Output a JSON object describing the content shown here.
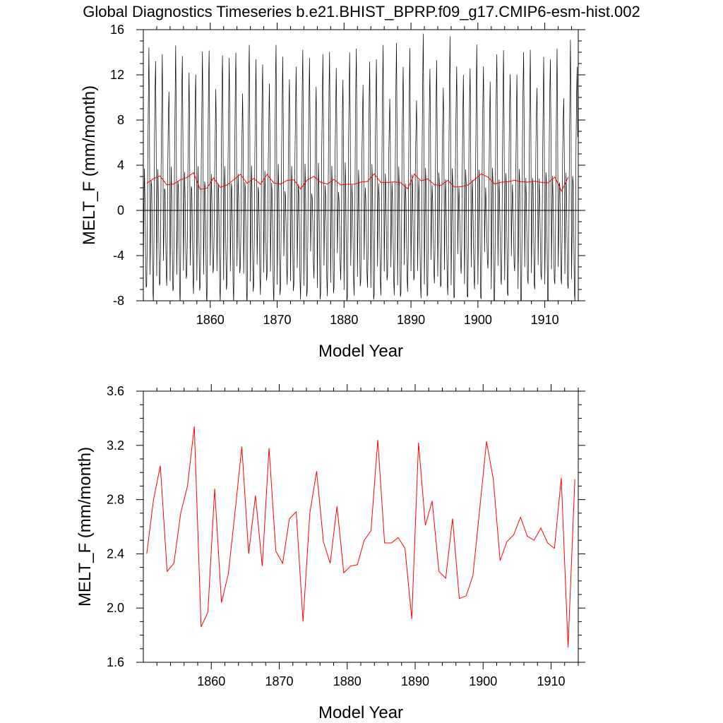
{
  "title": "Global Diagnostics Timeseries b.e21.BHIST_BPRP.f09_g17.CMIP6-esm-hist.002",
  "colors": {
    "monthly_series": "#000000",
    "annual_series": "#ff0000",
    "zero_line": "#000000",
    "frame": "#000000"
  },
  "chart_data": [
    {
      "type": "line",
      "xlabel": "Model Year",
      "ylabel": "MELT_F (mm/month)",
      "xlim": [
        1850,
        1915
      ],
      "ylim": [
        -8,
        16
      ],
      "xticks": [
        1860,
        1870,
        1880,
        1890,
        1900,
        1910
      ],
      "xtick_labels": [
        "1860",
        "1870",
        "1880",
        "1890",
        "1900",
        "1910"
      ],
      "yticks": [
        -8,
        -4,
        0,
        4,
        8,
        12,
        16
      ],
      "ytick_labels": [
        "-8",
        "-4",
        "0",
        "4",
        "8",
        "12",
        "16"
      ],
      "grid": false,
      "zero_line": true,
      "monthly_pattern": {
        "description_of_shape": "seasonal cycle repeated each year",
        "month_fractions": [
          0.0,
          0.083,
          0.167,
          0.25,
          0.333,
          0.417,
          0.5,
          0.583,
          0.667,
          0.75,
          0.833,
          0.917
        ],
        "month_values": [
          -5.5,
          -1.0,
          3.0,
          1.5,
          -2.5,
          -6.5,
          -7.0,
          -3.0,
          5.0,
          9.5,
          13.0,
          7.0
        ]
      },
      "series": [
        {
          "color": "#000000",
          "style": "monthly"
        },
        {
          "color": "#ff0000",
          "style": "annual_mean"
        }
      ]
    },
    {
      "type": "line",
      "xlabel": "Model Year",
      "ylabel": "MELT_F (mm/month)",
      "xlim": [
        1850,
        1914
      ],
      "ylim": [
        1.6,
        3.6
      ],
      "xticks": [
        1860,
        1870,
        1880,
        1890,
        1900,
        1910
      ],
      "xtick_labels": [
        "1860",
        "1870",
        "1880",
        "1890",
        "1900",
        "1910"
      ],
      "yticks": [
        1.6,
        2.0,
        2.4,
        2.8,
        3.2,
        3.6
      ],
      "ytick_labels": [
        "1.6",
        "2.0",
        "2.4",
        "2.8",
        "3.2",
        "3.6"
      ],
      "grid": false,
      "series": [
        {
          "color": "#ff0000",
          "x": [
            1850.5,
            1851.5,
            1852.5,
            1853.5,
            1854.5,
            1855.5,
            1856.5,
            1857.5,
            1858.5,
            1859.5,
            1860.5,
            1861.5,
            1862.5,
            1863.5,
            1864.5,
            1865.5,
            1866.5,
            1867.5,
            1868.5,
            1869.5,
            1870.5,
            1871.5,
            1872.5,
            1873.5,
            1874.5,
            1875.5,
            1876.5,
            1877.5,
            1878.5,
            1879.5,
            1880.5,
            1881.5,
            1882.5,
            1883.5,
            1884.5,
            1885.5,
            1886.5,
            1887.5,
            1888.5,
            1889.5,
            1890.5,
            1891.5,
            1892.5,
            1893.5,
            1894.5,
            1895.5,
            1896.5,
            1897.5,
            1898.5,
            1899.5,
            1900.5,
            1901.5,
            1902.5,
            1903.5,
            1904.5,
            1905.5,
            1906.5,
            1907.5,
            1908.5,
            1909.5,
            1910.5,
            1911.5,
            1912.5,
            1913.5
          ],
          "values": [
            2.4,
            2.8,
            3.05,
            2.27,
            2.33,
            2.7,
            2.9,
            3.34,
            1.86,
            1.97,
            2.88,
            2.04,
            2.25,
            2.71,
            3.19,
            2.4,
            2.83,
            2.31,
            3.18,
            2.42,
            2.33,
            2.66,
            2.71,
            1.9,
            2.7,
            3.01,
            2.49,
            2.33,
            2.75,
            2.26,
            2.31,
            2.32,
            2.5,
            2.57,
            3.24,
            2.48,
            2.48,
            2.52,
            2.44,
            1.92,
            3.22,
            2.61,
            2.79,
            2.27,
            2.22,
            2.66,
            2.07,
            2.09,
            2.24,
            2.73,
            3.23,
            2.95,
            2.35,
            2.49,
            2.54,
            2.67,
            2.53,
            2.5,
            2.59,
            2.48,
            2.44,
            2.96,
            1.71,
            2.95
          ]
        }
      ]
    }
  ]
}
